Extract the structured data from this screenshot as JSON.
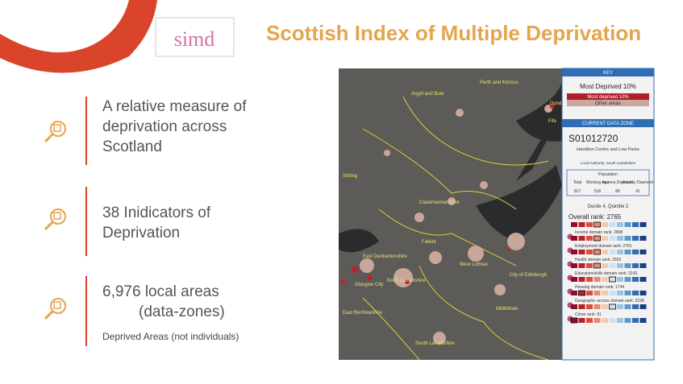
{
  "header": {
    "logo": "simd",
    "title": "Scottish Index of Multiple Deprivation"
  },
  "points": [
    {
      "lines": [
        "A relative measure of",
        "deprivation across",
        "Scotland"
      ]
    },
    {
      "lines": [
        "38 Inidicators of",
        "Deprivation"
      ]
    },
    {
      "lines": [
        "6,976 local areas",
        "(data-zones)"
      ],
      "note": "Deprived Areas (not individuals)"
    }
  ],
  "map": {
    "labels": [
      "Perth and Kinross",
      "Fife",
      "Dundee",
      "Stirling",
      "Clackmannanshire",
      "Falkirk",
      "West Lothian",
      "City of Edinburgh",
      "Midlothian",
      "North Lanarkshire",
      "South Lanarkshire",
      "East Dunbartonshire",
      "Glasgow City",
      "East Renfrewshire",
      "Argyll and Bute"
    ],
    "key": {
      "heading": "KEY",
      "title": "Most Deprived 10%",
      "legend": [
        "Most deprived 10%",
        "Other areas"
      ]
    },
    "data_zone": {
      "heading": "CURRENT DATA ZONE",
      "code": "S01012720",
      "name": "Hamilton Centre and Low Parks",
      "area": "Local Authority: South Lanarkshire",
      "population": {
        "title": "Population",
        "headers": [
          "Total",
          "Working Age",
          "Income Deprived",
          "Employ Deprived"
        ],
        "values": [
          "817",
          "516",
          "86",
          "41"
        ]
      },
      "decile": "Decile 4, Quintile 2",
      "overall": "Overall rank: 2765",
      "domains": [
        "Income domain rank: 2808",
        "Employment domain rank: 2781",
        "Health domain rank: 2552",
        "Education/skills domain rank: 3143",
        "Housing domain rank: 1744",
        "Geographic access domain rank: 3198",
        "Crime rank: 91"
      ]
    }
  }
}
